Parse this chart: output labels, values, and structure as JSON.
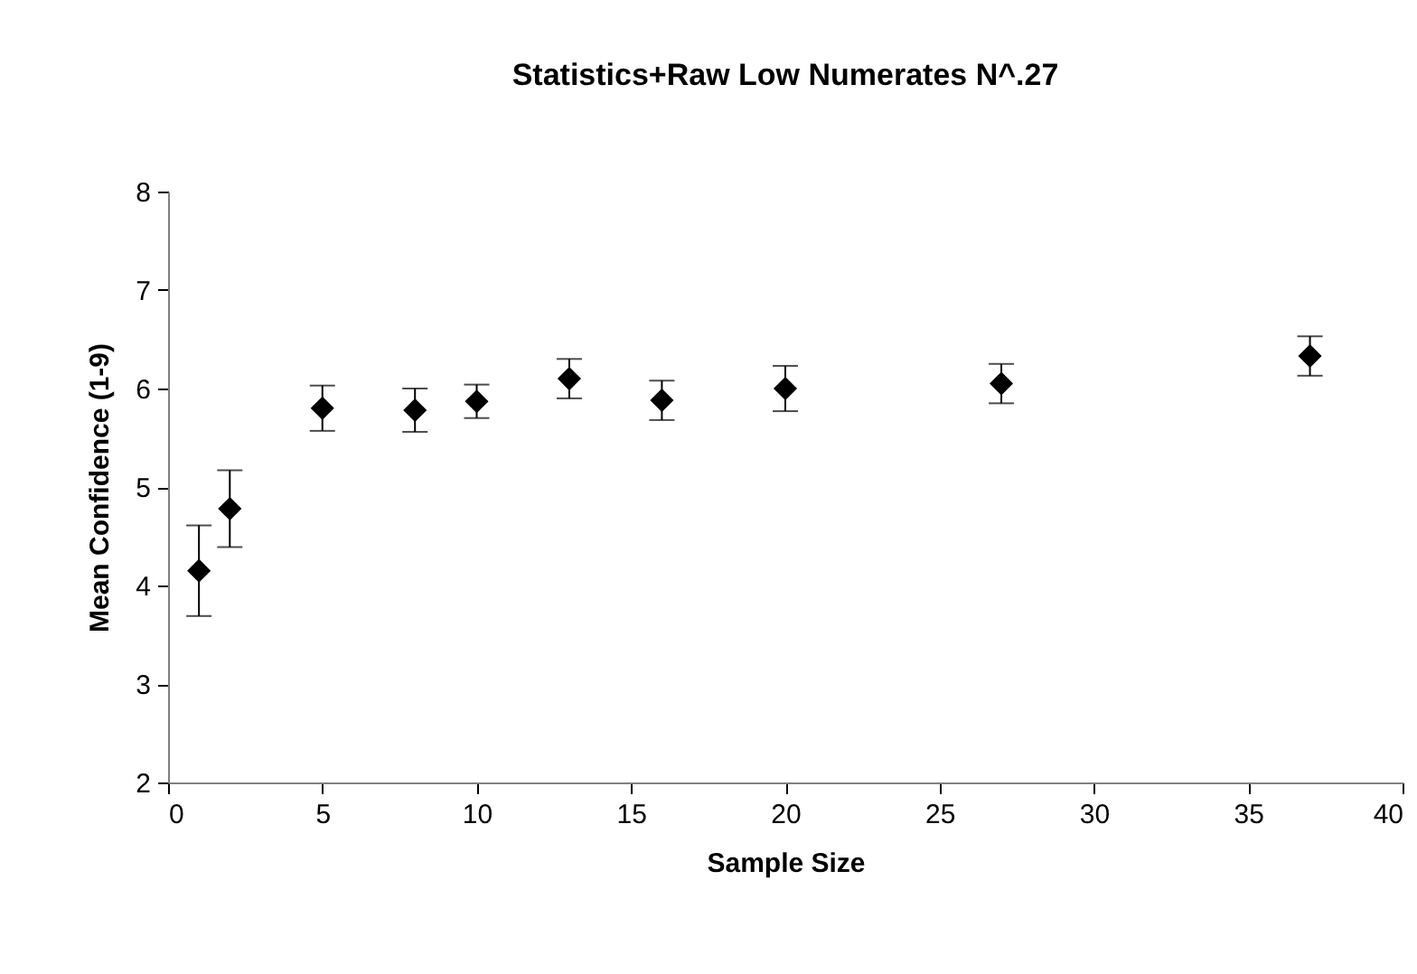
{
  "chart_data": {
    "type": "scatter",
    "title": "Statistics+Raw Low Numerates N^.27",
    "xlabel": "Sample Size",
    "ylabel": "Mean Confidence (1-9)",
    "x": [
      1,
      2,
      5,
      8,
      10,
      13,
      16,
      20,
      27,
      37
    ],
    "values": [
      4.15,
      4.78,
      5.8,
      5.78,
      5.87,
      6.1,
      5.88,
      6.0,
      6.05,
      6.33
    ],
    "errors": [
      0.46,
      0.39,
      0.23,
      0.22,
      0.17,
      0.2,
      0.2,
      0.23,
      0.2,
      0.2
    ],
    "color": "#000000",
    "marker": "diamond",
    "xlim": [
      0,
      40
    ],
    "xticks": [
      0,
      5,
      10,
      15,
      20,
      25,
      30,
      35,
      40
    ],
    "ylim": [
      2,
      8
    ],
    "yticks": [
      2,
      3,
      4,
      5,
      6,
      7,
      8
    ],
    "grid": false
  }
}
